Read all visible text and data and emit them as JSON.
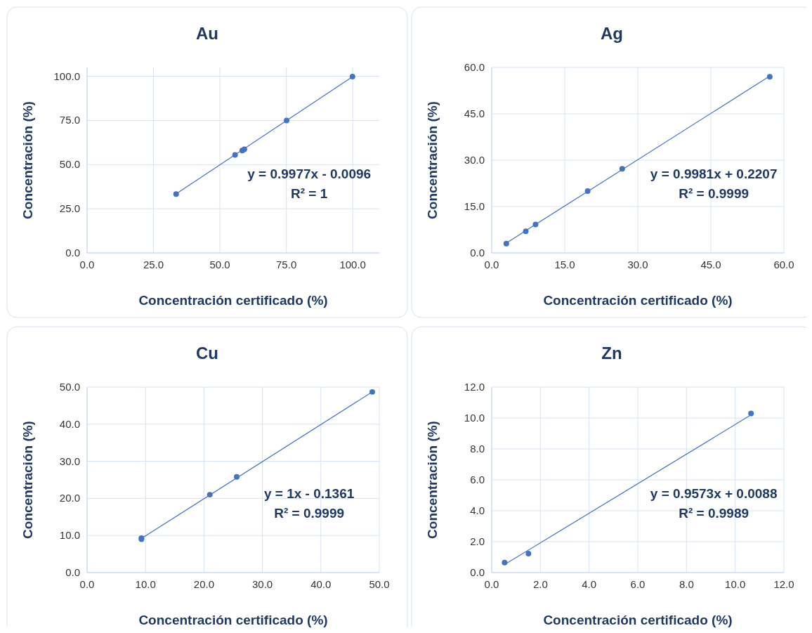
{
  "chart_data": [
    {
      "type": "scatter",
      "title": "Au",
      "xlabel": "Concentración certificado (%)",
      "ylabel": "Concentración (%)",
      "annotations": [
        "y = 0.9977x - 0.0096",
        "R² = 1"
      ],
      "grid": true,
      "xlim": [
        0,
        110
      ],
      "ylim": [
        0,
        105
      ],
      "xticks": [
        {
          "value": 0,
          "label": "0.0"
        },
        {
          "value": 25,
          "label": "25.0"
        },
        {
          "value": 50,
          "label": "50.0"
        },
        {
          "value": 75,
          "label": "75.0"
        },
        {
          "value": 100,
          "label": "100.0"
        }
      ],
      "yticks": [
        {
          "value": 0,
          "label": "0.0"
        },
        {
          "value": 25,
          "label": "25.0"
        },
        {
          "value": 50,
          "label": "50.0"
        },
        {
          "value": 75,
          "label": "75.0"
        },
        {
          "value": 100,
          "label": "100.0"
        }
      ],
      "series": [
        {
          "color": "#4472c4",
          "marker": "circle",
          "x": [
            33.5,
            55.7,
            58.4,
            59.2,
            75.1,
            99.9
          ],
          "values": [
            33.3,
            55.5,
            58.0,
            58.7,
            75.0,
            99.8
          ]
        },
        {
          "type": "line",
          "marker": "none",
          "color": "#4472c4",
          "x": [
            33.5,
            99.9
          ],
          "values": [
            33.4,
            99.7
          ]
        }
      ]
    },
    {
      "type": "scatter",
      "title": "Ag",
      "xlabel": "Concentración certificado (%)",
      "ylabel": "Concentración (%)",
      "annotations": [
        "y = 0.9981x + 0.2207",
        "R² = 0.9999"
      ],
      "grid": true,
      "xlim": [
        0,
        60
      ],
      "ylim": [
        0,
        60
      ],
      "xticks": [
        {
          "value": 0,
          "label": "0.0"
        },
        {
          "value": 15,
          "label": "15.0"
        },
        {
          "value": 30,
          "label": "30.0"
        },
        {
          "value": 45,
          "label": "45.0"
        },
        {
          "value": 60,
          "label": "60.0"
        }
      ],
      "yticks": [
        {
          "value": 0,
          "label": "0.0"
        },
        {
          "value": 15,
          "label": "15.0"
        },
        {
          "value": 30,
          "label": "30.0"
        },
        {
          "value": 45,
          "label": "45.0"
        },
        {
          "value": 60,
          "label": "60.0"
        }
      ],
      "series": [
        {
          "color": "#4472c4",
          "marker": "circle",
          "x": [
            3.0,
            7.0,
            9.0,
            19.7,
            26.8,
            57.1
          ],
          "values": [
            3.0,
            7.0,
            9.2,
            20.0,
            27.2,
            57.0
          ]
        },
        {
          "type": "line",
          "marker": "none",
          "color": "#4472c4",
          "x": [
            3.0,
            57.1
          ],
          "values": [
            3.2,
            57.2
          ]
        }
      ]
    },
    {
      "type": "scatter",
      "title": "Cu",
      "xlabel": "Concentración certificado (%)",
      "ylabel": "Concentración (%)",
      "annotations": [
        "y = 1x - 0.1361",
        "R² = 0.9999"
      ],
      "grid": true,
      "xlim": [
        0,
        50
      ],
      "ylim": [
        0,
        50
      ],
      "xticks": [
        {
          "value": 0,
          "label": "0.0"
        },
        {
          "value": 10,
          "label": "10.0"
        },
        {
          "value": 20,
          "label": "20.0"
        },
        {
          "value": 30,
          "label": "30.0"
        },
        {
          "value": 40,
          "label": "40.0"
        },
        {
          "value": 50,
          "label": "50.0"
        }
      ],
      "yticks": [
        {
          "value": 0,
          "label": "0.0"
        },
        {
          "value": 10,
          "label": "10.0"
        },
        {
          "value": 20,
          "label": "20.0"
        },
        {
          "value": 30,
          "label": "30.0"
        },
        {
          "value": 40,
          "label": "40.0"
        },
        {
          "value": 50,
          "label": "50.0"
        }
      ],
      "series": [
        {
          "color": "#4472c4",
          "marker": "circle",
          "x": [
            9.3,
            9.3,
            21.0,
            25.6,
            48.8
          ],
          "values": [
            9.3,
            9.0,
            21.0,
            25.8,
            48.7
          ]
        },
        {
          "type": "line",
          "marker": "none",
          "color": "#4472c4",
          "x": [
            9.3,
            48.8
          ],
          "values": [
            9.2,
            48.7
          ]
        }
      ]
    },
    {
      "type": "scatter",
      "title": "Zn",
      "xlabel": "Concentración certificado (%)",
      "ylabel": "Concentración (%)",
      "annotations": [
        "y = 0.9573x + 0.0088",
        "R² = 0.9989"
      ],
      "grid": true,
      "xlim": [
        0,
        12
      ],
      "ylim": [
        0,
        12
      ],
      "xticks": [
        {
          "value": 0,
          "label": "0.0"
        },
        {
          "value": 2,
          "label": "2.0"
        },
        {
          "value": 4,
          "label": "4.0"
        },
        {
          "value": 6,
          "label": "6.0"
        },
        {
          "value": 8,
          "label": "8.0"
        },
        {
          "value": 10,
          "label": "10.0"
        },
        {
          "value": 12,
          "label": "12.0"
        }
      ],
      "yticks": [
        {
          "value": 0,
          "label": "0.0"
        },
        {
          "value": 2,
          "label": "2.0"
        },
        {
          "value": 4,
          "label": "4.0"
        },
        {
          "value": 6,
          "label": "6.0"
        },
        {
          "value": 8,
          "label": "8.0"
        },
        {
          "value": 10,
          "label": "10.0"
        },
        {
          "value": 12,
          "label": "12.0"
        }
      ],
      "series": [
        {
          "color": "#4472c4",
          "marker": "circle",
          "x": [
            0.53,
            1.51,
            10.65
          ],
          "values": [
            0.65,
            1.23,
            10.3
          ]
        },
        {
          "type": "line",
          "marker": "none",
          "color": "#4472c4",
          "x": [
            0.53,
            10.65
          ],
          "values": [
            0.52,
            10.2
          ]
        }
      ]
    }
  ]
}
